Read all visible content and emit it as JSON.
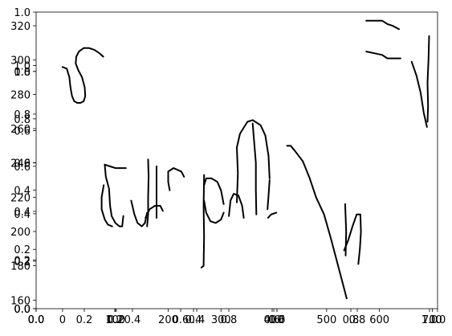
{
  "chart_data": {
    "type": "line",
    "title": "",
    "xlabel": "",
    "ylabel": "",
    "grid": false,
    "axes": [
      {
        "role": "stroke-data",
        "xlim": [
          -50,
          710
        ],
        "ylim": [
          155,
          328
        ],
        "y_ticks": [
          160,
          180,
          200,
          220,
          240,
          260,
          280,
          300,
          320
        ],
        "x_ticks": [
          0,
          100,
          200,
          300,
          400,
          500,
          600,
          700
        ],
        "x_tick_labels": [
          "0",
          "100",
          "200",
          "300",
          "400",
          "500",
          "600",
          "700"
        ]
      },
      {
        "role": "overlapping-empty-axes",
        "count": 3,
        "xlim": [
          0,
          1
        ],
        "ylim": [
          0,
          1
        ],
        "ticks": [
          0.0,
          0.2,
          0.4,
          0.6,
          0.8,
          1.0
        ],
        "tick_labels": [
          "0.0",
          "0.2",
          "0.4",
          "0.6",
          "0.8",
          "1.0"
        ]
      }
    ],
    "series": [
      {
        "values": [
          [
            0,
            296
          ],
          [
            8,
            295
          ],
          [
            13,
            290
          ],
          [
            15,
            284
          ],
          [
            18,
            279
          ],
          [
            22,
            276
          ],
          [
            28,
            275
          ],
          [
            34,
            275
          ],
          [
            40,
            276
          ],
          [
            43,
            279
          ],
          [
            42,
            284
          ],
          [
            37,
            290
          ],
          [
            30,
            294
          ],
          [
            25,
            298
          ],
          [
            26,
            302
          ],
          [
            31,
            305
          ],
          [
            40,
            307
          ],
          [
            50,
            307
          ],
          [
            60,
            306
          ],
          [
            70,
            304
          ],
          [
            77,
            302
          ]
        ]
      },
      {
        "values": [
          [
            80,
            239
          ],
          [
            90,
            238
          ],
          [
            100,
            237
          ],
          [
            110,
            237
          ],
          [
            120,
            237
          ]
        ]
      },
      {
        "values": [
          [
            80,
            239
          ],
          [
            82,
            232
          ],
          [
            88,
            225
          ],
          [
            90,
            215
          ],
          [
            93,
            209
          ],
          [
            100,
            205
          ],
          [
            108,
            203
          ],
          [
            113,
            203
          ],
          [
            115,
            209
          ]
        ]
      },
      {
        "values": [
          [
            78,
            227
          ],
          [
            74,
            220
          ],
          [
            74,
            213
          ],
          [
            80,
            207
          ],
          [
            86,
            204
          ],
          [
            94,
            203
          ]
        ]
      },
      {
        "values": [
          [
            130,
            218
          ],
          [
            136,
            210
          ],
          [
            142,
            205
          ],
          [
            150,
            203
          ],
          [
            156,
            205
          ],
          [
            160,
            211
          ]
        ]
      },
      {
        "values": [
          [
            162,
            242
          ],
          [
            163,
            232
          ],
          [
            162,
            220
          ],
          [
            162,
            210
          ],
          [
            160,
            203
          ]
        ]
      },
      {
        "values": [
          [
            157,
            208
          ],
          [
            165,
            213
          ],
          [
            175,
            215
          ],
          [
            185,
            215
          ],
          [
            190,
            212
          ]
        ]
      },
      {
        "values": [
          [
            178,
            238
          ],
          [
            178,
            226
          ],
          [
            178,
            208
          ]
        ]
      },
      {
        "values": [
          [
            203,
            224
          ],
          [
            200,
            229
          ],
          [
            200,
            235
          ],
          [
            210,
            237
          ],
          [
            225,
            235
          ],
          [
            230,
            232
          ]
        ]
      },
      {
        "values": [
          [
            268,
            233
          ],
          [
            267,
            215
          ],
          [
            268,
            197
          ],
          [
            267,
            180
          ],
          [
            263,
            179
          ]
        ]
      },
      {
        "values": [
          [
            268,
            218
          ],
          [
            272,
            211
          ],
          [
            280,
            206
          ],
          [
            290,
            205
          ],
          [
            300,
            207
          ],
          [
            305,
            211
          ]
        ]
      },
      {
        "values": [
          [
            268,
            227
          ],
          [
            272,
            231
          ],
          [
            282,
            231
          ],
          [
            293,
            229
          ],
          [
            300,
            224
          ],
          [
            305,
            216
          ]
        ]
      },
      {
        "values": [
          [
            315,
            209
          ],
          [
            318,
            218
          ],
          [
            324,
            222
          ],
          [
            333,
            221
          ],
          [
            340,
            215
          ],
          [
            343,
            208
          ]
        ]
      },
      {
        "values": [
          [
            330,
            217
          ],
          [
            332,
            234
          ],
          [
            330,
            249
          ],
          [
            336,
            257
          ],
          [
            350,
            264
          ],
          [
            360,
            265
          ],
          [
            375,
            262
          ],
          [
            384,
            256
          ],
          [
            390,
            244
          ],
          [
            392,
            231
          ]
        ]
      },
      {
        "values": [
          [
            360,
            263
          ],
          [
            366,
            240
          ],
          [
            366,
            224
          ],
          [
            367,
            210
          ]
        ]
      },
      {
        "values": [
          [
            388,
            213
          ],
          [
            390,
            221
          ],
          [
            392,
            230
          ]
        ]
      },
      {
        "values": [
          [
            389,
            208
          ],
          [
            395,
            210
          ],
          [
            405,
            211
          ]
        ]
      },
      {
        "values": [
          [
            425,
            250
          ],
          [
            432,
            250
          ],
          [
            440,
            247
          ],
          [
            455,
            241
          ],
          [
            468,
            231
          ],
          [
            480,
            220
          ],
          [
            495,
            210
          ],
          [
            508,
            196
          ],
          [
            520,
            182
          ],
          [
            532,
            168
          ],
          [
            538,
            161
          ]
        ]
      },
      {
        "values": [
          [
            535,
            216
          ],
          [
            537,
            200
          ],
          [
            536,
            186
          ]
        ]
      },
      {
        "values": [
          [
            533,
            189
          ],
          [
            541,
            195
          ],
          [
            549,
            203
          ],
          [
            557,
            210
          ],
          [
            564,
            210
          ],
          [
            565,
            200
          ],
          [
            563,
            190
          ],
          [
            560,
            181
          ]
        ]
      },
      {
        "values": [
          [
            575,
            323
          ],
          [
            590,
            323
          ],
          [
            605,
            323
          ],
          [
            615,
            321
          ],
          [
            625,
            320
          ],
          [
            637,
            318
          ]
        ]
      },
      {
        "values": [
          [
            575,
            305
          ],
          [
            590,
            304
          ],
          [
            605,
            303
          ],
          [
            615,
            301
          ],
          [
            625,
            301
          ],
          [
            640,
            301
          ]
        ]
      },
      {
        "values": [
          [
            661,
            299
          ],
          [
            670,
            291
          ],
          [
            678,
            281
          ],
          [
            684,
            269
          ],
          [
            690,
            261
          ]
        ]
      },
      {
        "values": [
          [
            691,
            264
          ],
          [
            692,
            273
          ],
          [
            691,
            287
          ],
          [
            693,
            301
          ],
          [
            694,
            314
          ]
        ]
      }
    ]
  }
}
